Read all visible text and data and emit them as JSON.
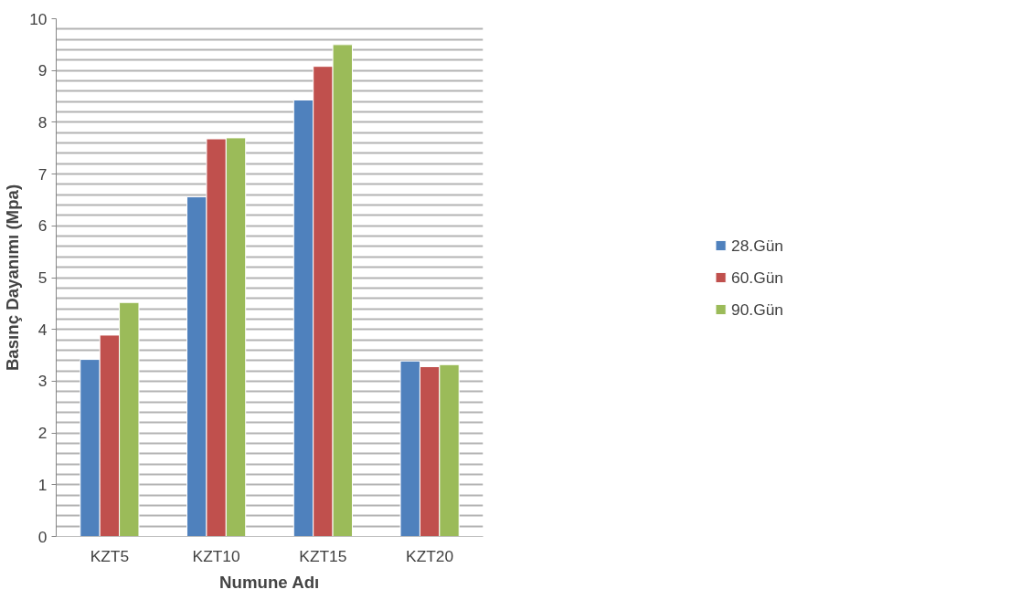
{
  "chart_data": {
    "type": "bar",
    "xlabel": "Numune Adı",
    "ylabel": "Basınç Dayanımı (Mpa)",
    "categories": [
      "KZT5",
      "KZT10",
      "KZT15",
      "KZT20"
    ],
    "series": [
      {
        "name": "28.Gün",
        "color": "#4f81bd",
        "values": [
          3.42,
          6.56,
          8.43,
          3.39
        ]
      },
      {
        "name": "60.Gün",
        "color": "#c0504d",
        "values": [
          3.89,
          7.68,
          9.08,
          3.28
        ]
      },
      {
        "name": "90.Gün",
        "color": "#9bbb59",
        "values": [
          4.52,
          7.7,
          9.5,
          3.32
        ]
      }
    ],
    "ylim": [
      0,
      10
    ],
    "yticks": [
      0,
      1,
      2,
      3,
      4,
      5,
      6,
      7,
      8,
      9,
      10
    ],
    "grid": "y",
    "legend": "right"
  }
}
